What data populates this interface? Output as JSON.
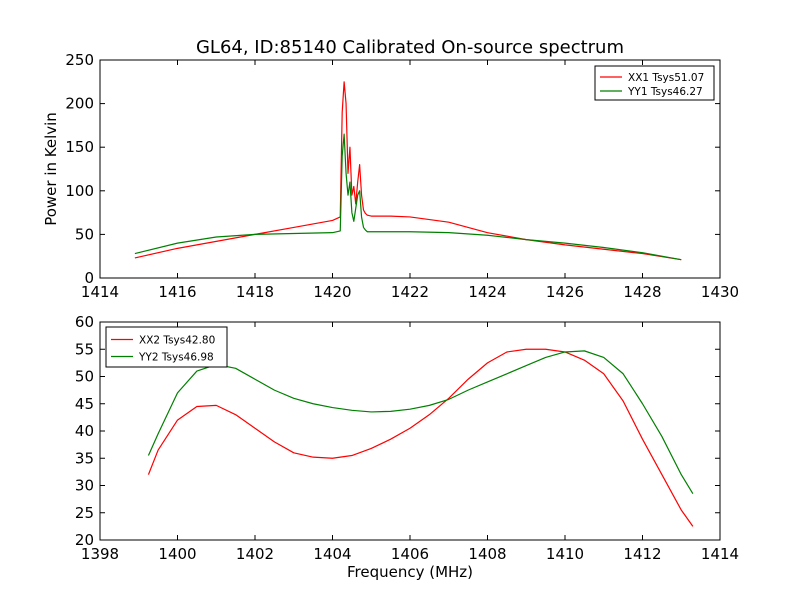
{
  "figure_title": "GL64, ID:85140 Calibrated On-source spectrum",
  "chart_data": [
    {
      "type": "line",
      "xlim": [
        1414,
        1430
      ],
      "ylim": [
        0,
        250
      ],
      "xticks": [
        1414,
        1416,
        1418,
        1420,
        1422,
        1424,
        1426,
        1428,
        1430
      ],
      "yticks": [
        0,
        50,
        100,
        150,
        200,
        250
      ],
      "xlabel": "",
      "ylabel": "Power in Kelvin",
      "grid": false,
      "legend_position": "top-right",
      "series": [
        {
          "name": "XX1 Tsys51.07",
          "color": "#ff0000",
          "x": [
            1414.9,
            1416,
            1417,
            1418,
            1419,
            1420,
            1420.2,
            1420.25,
            1420.3,
            1420.35,
            1420.4,
            1420.45,
            1420.5,
            1420.55,
            1420.6,
            1420.65,
            1420.7,
            1420.75,
            1420.8,
            1420.85,
            1420.9,
            1421,
            1421.5,
            1422,
            1423,
            1424,
            1425,
            1426,
            1427,
            1428,
            1429
          ],
          "y": [
            23,
            34,
            42,
            50,
            58,
            66,
            70,
            190,
            225,
            200,
            120,
            150,
            95,
            105,
            85,
            110,
            130,
            95,
            78,
            74,
            72,
            71,
            71,
            70,
            64,
            52,
            44,
            38,
            33,
            28,
            21
          ]
        },
        {
          "name": "YY1 Tsys46.27",
          "color": "#008000",
          "x": [
            1414.9,
            1416,
            1417,
            1418,
            1419,
            1420,
            1420.2,
            1420.25,
            1420.3,
            1420.35,
            1420.4,
            1420.45,
            1420.5,
            1420.55,
            1420.6,
            1420.65,
            1420.7,
            1420.75,
            1420.8,
            1420.85,
            1420.9,
            1421,
            1422,
            1423,
            1424,
            1425,
            1426,
            1427,
            1428,
            1429
          ],
          "y": [
            28,
            40,
            47,
            50,
            51,
            52,
            54,
            140,
            165,
            120,
            95,
            110,
            75,
            65,
            80,
            95,
            100,
            70,
            58,
            55,
            53,
            53,
            53,
            52,
            49,
            44,
            40,
            35,
            29,
            21
          ]
        }
      ]
    },
    {
      "type": "line",
      "xlim": [
        1398,
        1414
      ],
      "ylim": [
        20,
        60
      ],
      "xticks": [
        1398,
        1400,
        1402,
        1404,
        1406,
        1408,
        1410,
        1412,
        1414
      ],
      "yticks": [
        20,
        25,
        30,
        35,
        40,
        45,
        50,
        55,
        60
      ],
      "xlabel": "Frequency (MHz)",
      "ylabel": "",
      "grid": false,
      "legend_position": "top-left",
      "series": [
        {
          "name": "XX2 Tsys42.80",
          "color": "#ff0000",
          "x": [
            1399.25,
            1399.5,
            1400,
            1400.5,
            1401,
            1401.5,
            1402,
            1402.5,
            1403,
            1403.5,
            1404,
            1404.5,
            1405,
            1405.5,
            1406,
            1406.5,
            1407,
            1407.5,
            1408,
            1408.5,
            1409,
            1409.5,
            1410,
            1410.5,
            1411,
            1411.5,
            1412,
            1412.5,
            1413,
            1413.3
          ],
          "y": [
            32,
            36.5,
            42,
            44.5,
            44.7,
            43,
            40.5,
            38,
            36,
            35.2,
            35,
            35.5,
            36.8,
            38.5,
            40.5,
            43,
            46,
            49.5,
            52.5,
            54.5,
            55,
            55,
            54.5,
            53,
            50.5,
            45.5,
            38.5,
            32,
            25.5,
            22.5
          ]
        },
        {
          "name": "YY2 Tsys46.98",
          "color": "#008000",
          "x": [
            1399.25,
            1399.5,
            1400,
            1400.5,
            1401,
            1401.5,
            1402,
            1402.5,
            1403,
            1403.5,
            1404,
            1404.5,
            1405,
            1405.5,
            1406,
            1406.5,
            1407,
            1407.5,
            1408,
            1408.5,
            1409,
            1409.5,
            1410,
            1410.5,
            1411,
            1411.5,
            1412,
            1412.5,
            1413,
            1413.3
          ],
          "y": [
            35.5,
            39.5,
            47,
            51,
            52.2,
            51.5,
            49.5,
            47.5,
            46,
            45,
            44.3,
            43.8,
            43.5,
            43.6,
            44,
            44.7,
            45.8,
            47.5,
            49,
            50.5,
            52,
            53.5,
            54.5,
            54.7,
            53.5,
            50.5,
            45,
            39,
            32,
            28.5
          ]
        }
      ]
    }
  ]
}
